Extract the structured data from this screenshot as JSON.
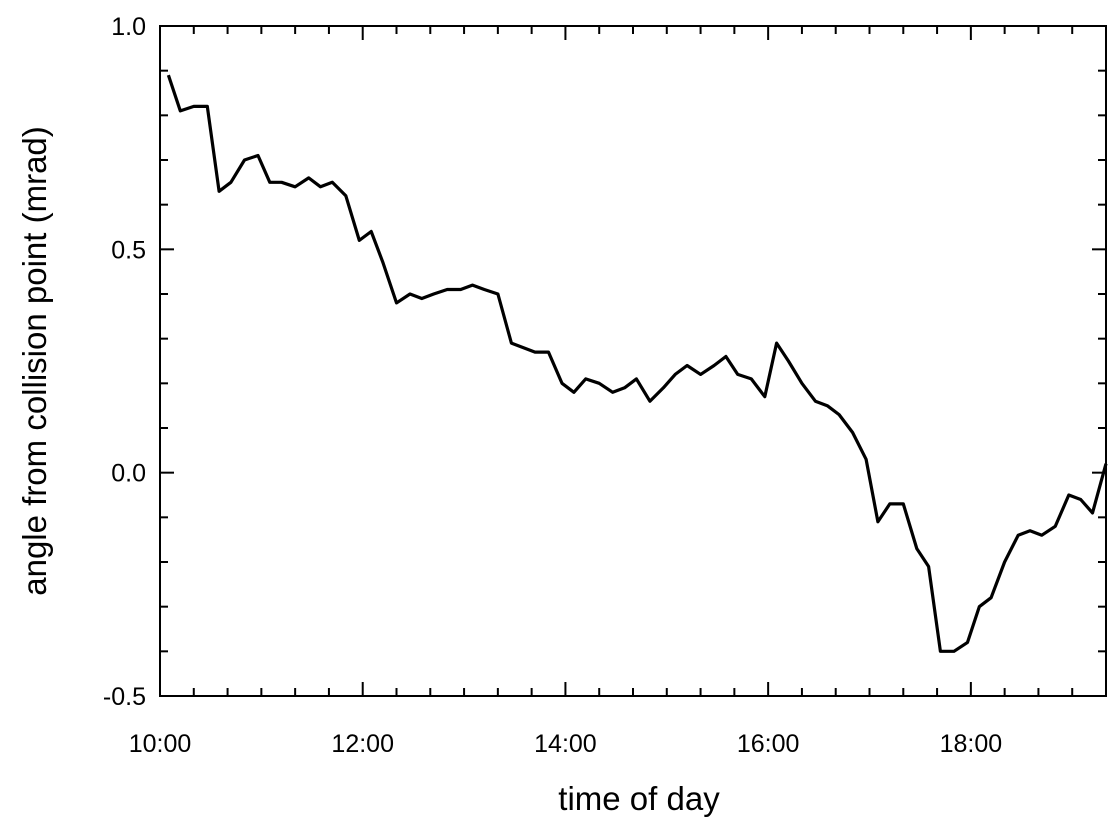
{
  "chart_data": {
    "type": "line",
    "xlabel": "time of day",
    "ylabel": "angle from collision point (mrad)",
    "xlim": [
      "10:00",
      "19:20"
    ],
    "ylim": [
      -0.5,
      1.0
    ],
    "x_ticks": [
      "10:00",
      "12:00",
      "14:00",
      "16:00",
      "18:00"
    ],
    "y_ticks": [
      "-0.5",
      "0.0",
      "0.5",
      "1.0"
    ],
    "grid": false,
    "legend": "none",
    "line_color": "#000000",
    "series": [
      {
        "x": [
          "10:05",
          "10:12",
          "10:20",
          "10:28",
          "10:35",
          "10:42",
          "10:50",
          "10:58",
          "11:05",
          "11:12",
          "11:20",
          "11:28",
          "11:35",
          "11:42",
          "11:50",
          "11:58",
          "12:05",
          "12:12",
          "12:20",
          "12:28",
          "12:35",
          "12:42",
          "12:50",
          "12:58",
          "13:05",
          "13:12",
          "13:20",
          "13:28",
          "13:35",
          "13:42",
          "13:50",
          "13:58",
          "14:05",
          "14:12",
          "14:20",
          "14:28",
          "14:35",
          "14:42",
          "14:50",
          "14:58",
          "15:05",
          "15:12",
          "15:20",
          "15:28",
          "15:35",
          "15:42",
          "15:50",
          "15:58",
          "16:05",
          "16:12",
          "16:20",
          "16:28",
          "16:35",
          "16:42",
          "16:50",
          "16:58",
          "17:05",
          "17:12",
          "17:20",
          "17:28",
          "17:35",
          "17:42",
          "17:50",
          "17:58",
          "18:05",
          "18:12",
          "18:20",
          "18:28",
          "18:35",
          "18:42",
          "18:50",
          "18:58",
          "19:05",
          "19:12",
          "19:20"
        ],
        "values": [
          0.89,
          0.81,
          0.82,
          0.82,
          0.63,
          0.65,
          0.7,
          0.71,
          0.65,
          0.65,
          0.64,
          0.66,
          0.64,
          0.65,
          0.62,
          0.52,
          0.54,
          0.47,
          0.38,
          0.4,
          0.39,
          0.4,
          0.41,
          0.41,
          0.42,
          0.41,
          0.4,
          0.29,
          0.28,
          0.27,
          0.27,
          0.2,
          0.18,
          0.21,
          0.2,
          0.18,
          0.19,
          0.21,
          0.16,
          0.19,
          0.22,
          0.24,
          0.22,
          0.24,
          0.26,
          0.22,
          0.21,
          0.17,
          0.29,
          0.25,
          0.2,
          0.16,
          0.15,
          0.13,
          0.09,
          0.03,
          -0.11,
          -0.07,
          -0.07,
          -0.17,
          -0.21,
          -0.4,
          -0.4,
          -0.38,
          -0.3,
          -0.28,
          -0.2,
          -0.14,
          -0.13,
          -0.14,
          -0.12,
          -0.05,
          -0.06,
          -0.09,
          0.02
        ]
      }
    ]
  }
}
